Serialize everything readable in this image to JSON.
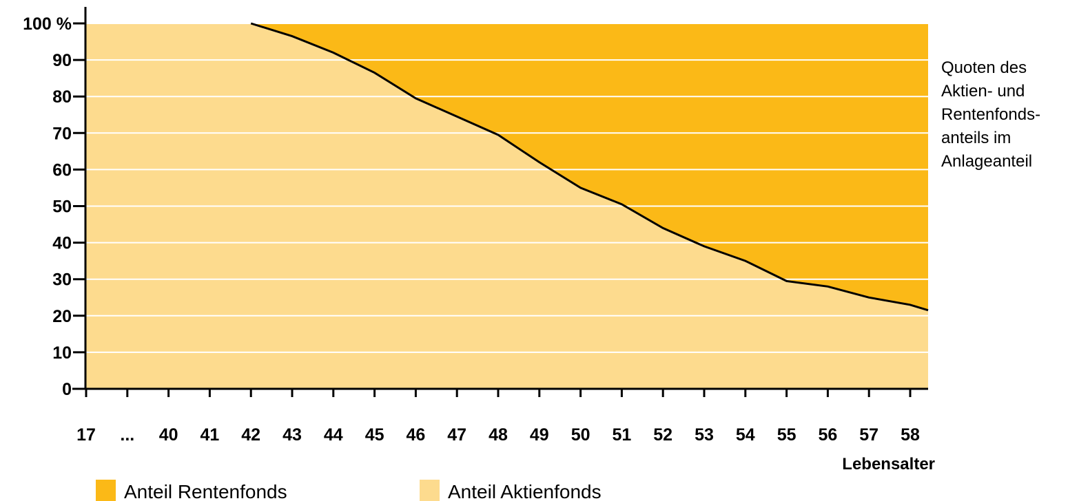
{
  "chart_data": {
    "type": "area",
    "stacked": true,
    "x_ticks": [
      "17",
      "...",
      "40",
      "41",
      "42",
      "43",
      "44",
      "45",
      "46",
      "47",
      "48",
      "49",
      "50",
      "51",
      "52",
      "53",
      "54",
      "55",
      "56",
      "57",
      "58"
    ],
    "x": [
      17,
      40,
      41,
      42,
      43,
      44,
      45,
      46,
      47,
      48,
      49,
      50,
      51,
      52,
      53,
      54,
      55,
      56,
      57,
      58
    ],
    "y_ticks": [
      "0",
      "10",
      "20",
      "30",
      "40",
      "50",
      "60",
      "70",
      "80",
      "90",
      "100 %"
    ],
    "ylim": [
      0,
      100
    ],
    "series": [
      {
        "name": "Anteil Aktienfonds",
        "color": "#fddb8e",
        "values": [
          100,
          100,
          100,
          100,
          96.5,
          92,
          86.5,
          79.5,
          74.5,
          69.5,
          62,
          55,
          50.5,
          44,
          39,
          35,
          29.5,
          28,
          25,
          23
        ]
      },
      {
        "name": "Anteil Rentenfonds",
        "color": "#fbb917",
        "values": [
          0,
          0,
          0,
          0,
          3.5,
          8,
          13.5,
          20.5,
          25.5,
          30.5,
          38,
          45,
          49.5,
          56,
          61,
          65,
          70.5,
          72,
          75,
          77
        ]
      }
    ],
    "x_end_value": 21.5,
    "xlabel": "Lebensalter",
    "annotation": [
      "Quoten des",
      "Aktien- und",
      "Rentenfonds-",
      "anteils im",
      "Anlageanteil"
    ],
    "grid": true,
    "grid_color": "#ffffff",
    "legend_position": "bottom"
  },
  "legend": {
    "items": [
      {
        "label": "Anteil Rentenfonds",
        "color": "#fbb917"
      },
      {
        "label": "Anteil Aktienfonds",
        "color": "#fddb8e"
      }
    ]
  }
}
